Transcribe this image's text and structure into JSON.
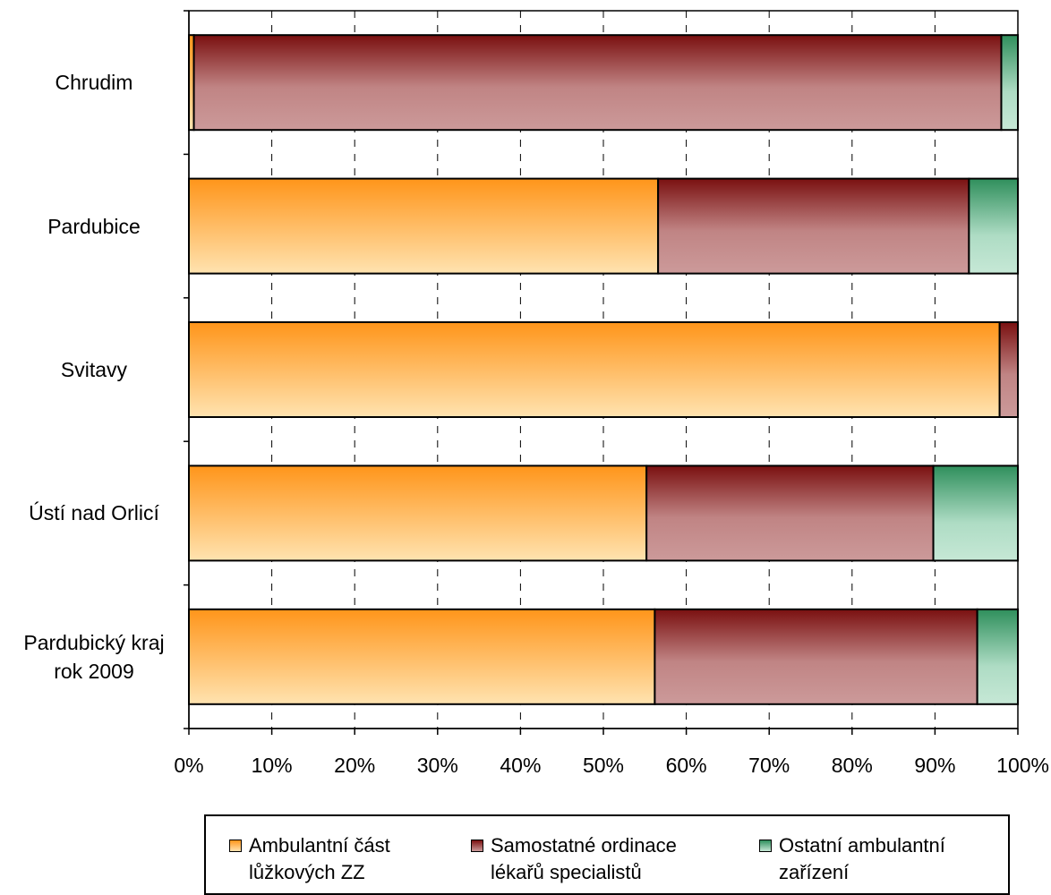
{
  "chart_data": {
    "type": "bar",
    "orientation": "horizontal",
    "stacked": "percent",
    "categories": [
      "Chrudim",
      "Pardubice",
      "Svitavy",
      "Ústí nad Orlicí",
      "Pardubický kraj\nrok 2009"
    ],
    "series": [
      {
        "name": "Ambulantní část lůžkových ZZ",
        "values": [
          0.6,
          56.6,
          97.8,
          55.2,
          56.2
        ],
        "color": "#ff9a1e"
      },
      {
        "name": "Samostatné ordinace lékařů specialistů",
        "values": [
          97.4,
          37.5,
          2.2,
          34.6,
          38.9
        ],
        "color": "#8b1a1a"
      },
      {
        "name": "Ostatní ambulantní zařízení",
        "values": [
          2.0,
          5.9,
          0.0,
          10.2,
          4.9
        ],
        "color": "#3a9a6a"
      }
    ],
    "xlim": [
      0,
      100
    ],
    "xticks": [
      "0%",
      "10%",
      "20%",
      "30%",
      "40%",
      "50%",
      "60%",
      "70%",
      "80%",
      "90%",
      "100%"
    ],
    "grid": "vertical dashed",
    "legend_position": "bottom"
  },
  "legend": [
    {
      "label": "Ambulantní část\nlůžkových ZZ",
      "color": "#ff9a1e"
    },
    {
      "label": "Samostatné ordinace\nlékařů specialistů",
      "color": "#8b1a1a"
    },
    {
      "label": "Ostatní ambulantní\nzařízení",
      "color": "#3a9a6a"
    }
  ]
}
